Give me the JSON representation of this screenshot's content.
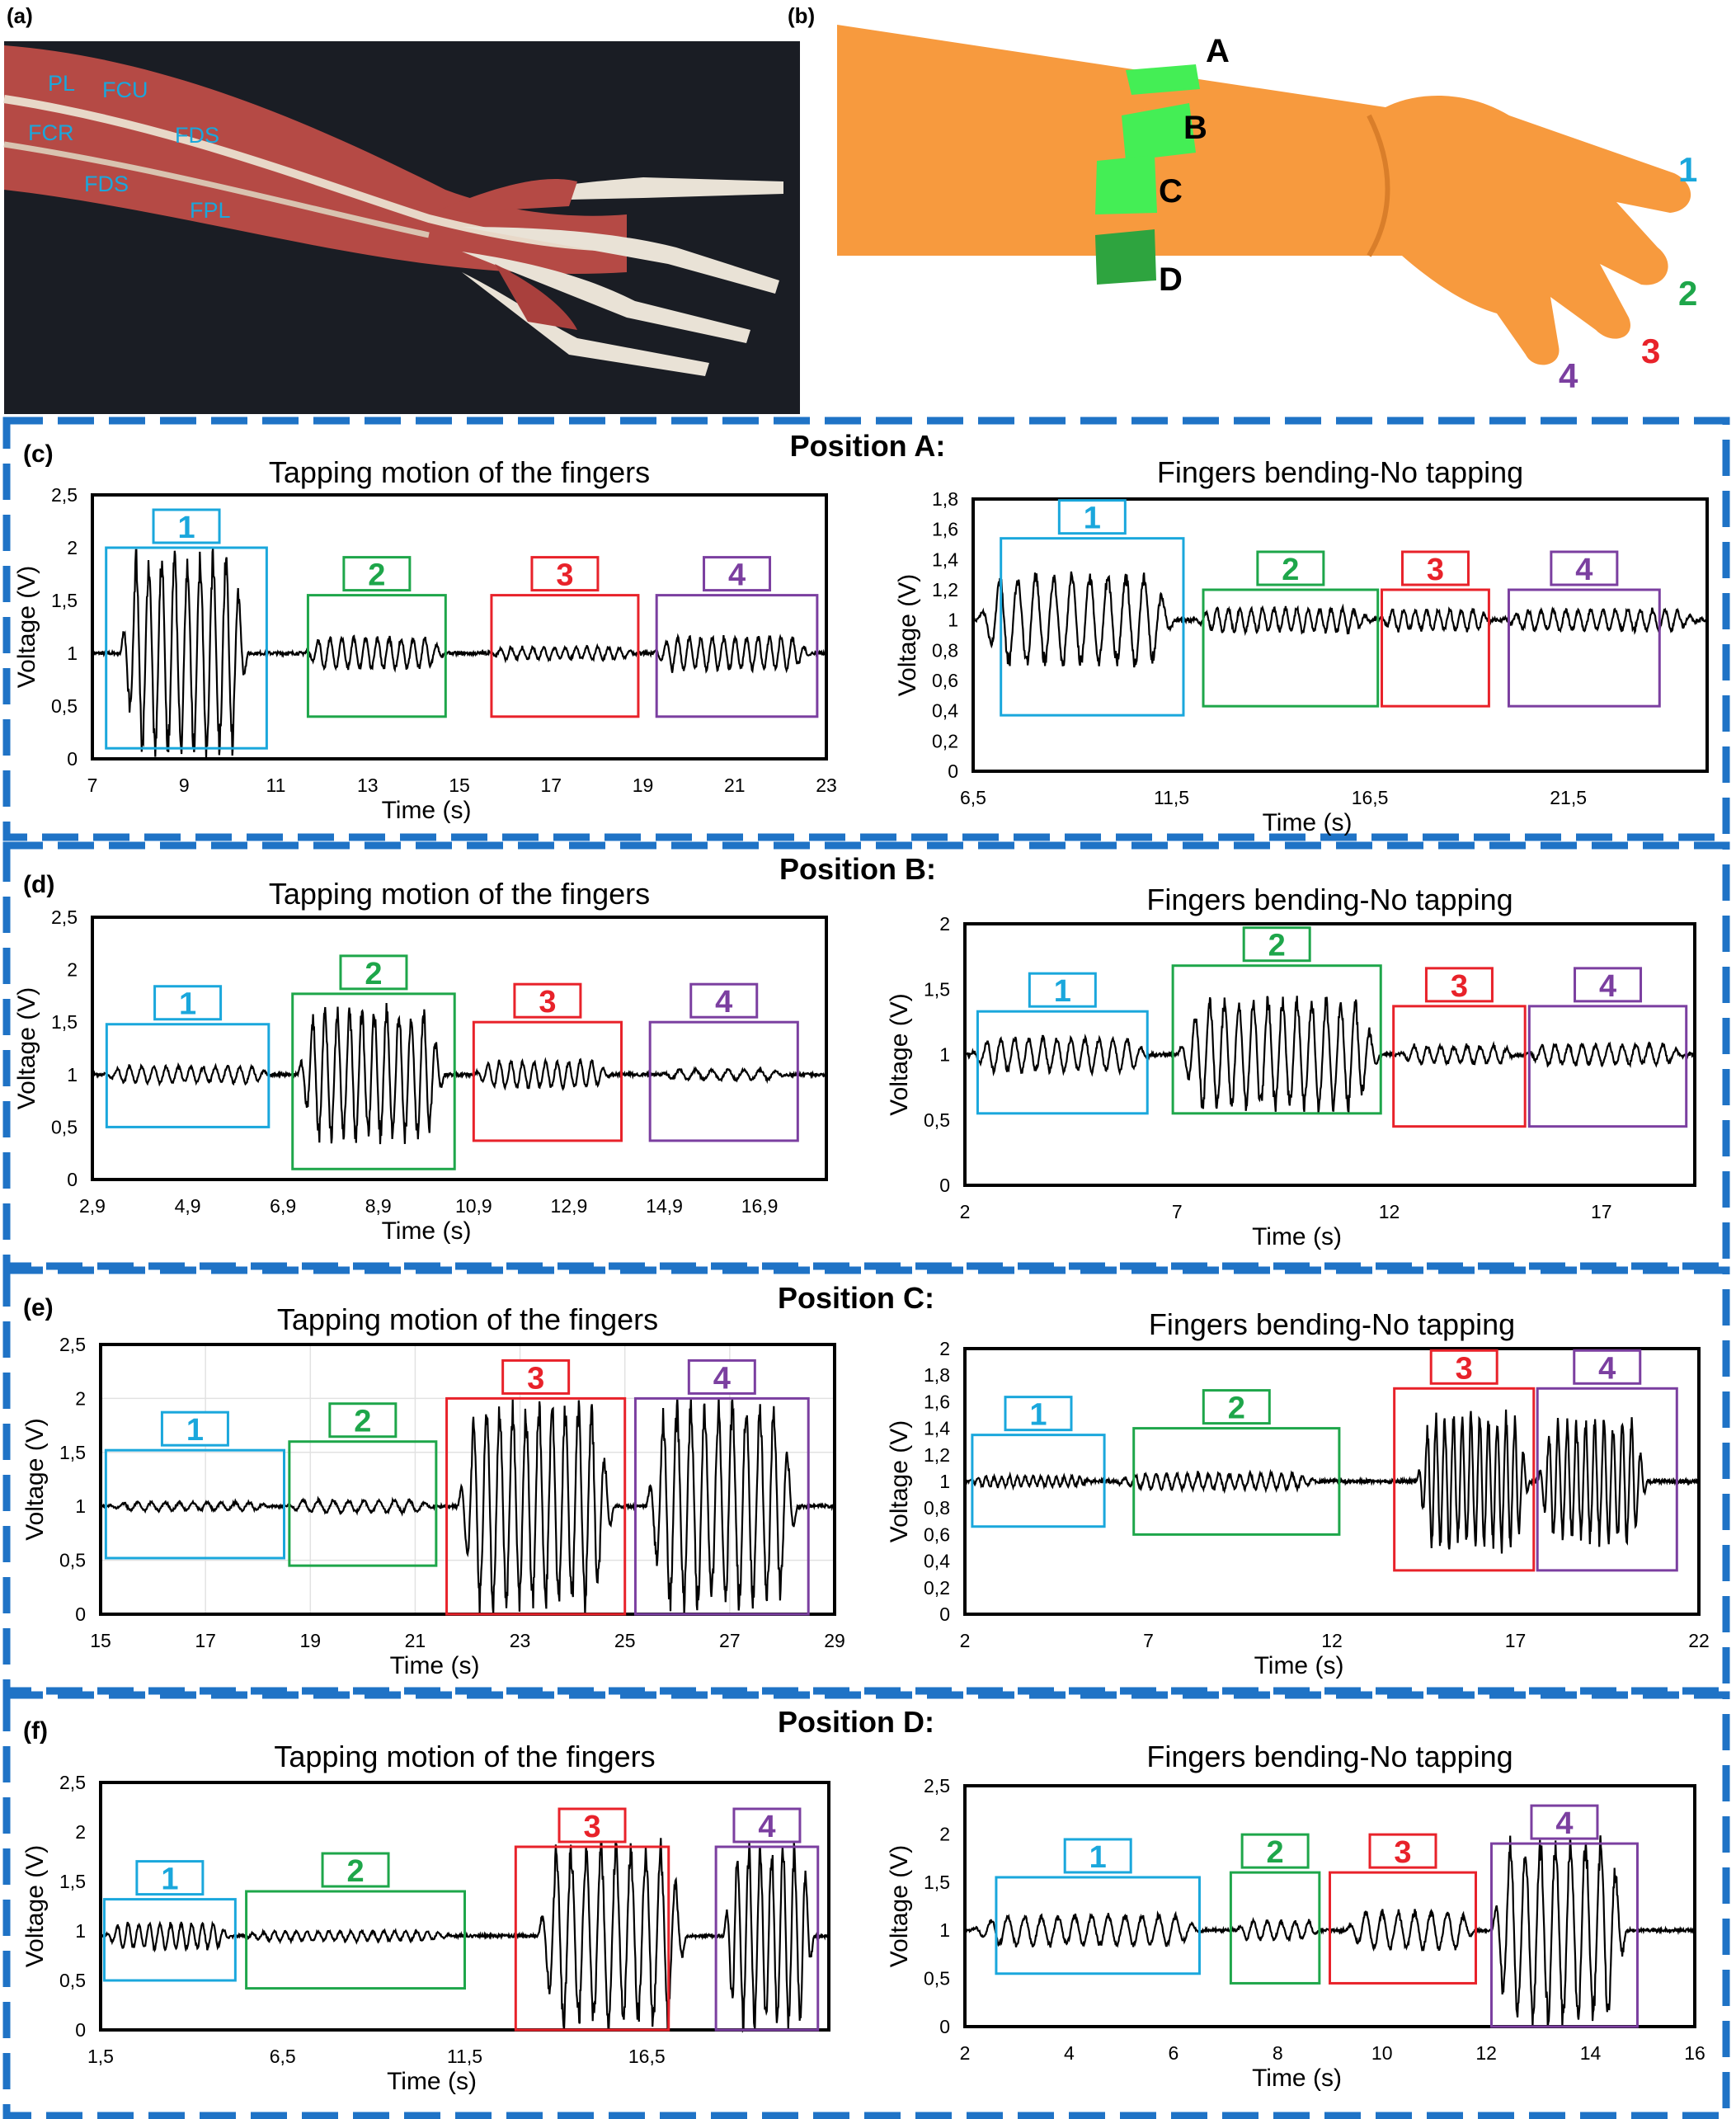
{
  "panels": {
    "a": {
      "label": "(a)",
      "muscles": [
        {
          "text": "PL"
        },
        {
          "text": "FCU"
        },
        {
          "text": "FCR"
        },
        {
          "text": "FDS"
        },
        {
          "text": "FDS"
        },
        {
          "text": "FPL"
        }
      ]
    },
    "b": {
      "label": "(b)",
      "sensors": [
        "A",
        "B",
        "C",
        "D"
      ],
      "fingers": [
        "1",
        "2",
        "3",
        "4"
      ]
    }
  },
  "colors": {
    "f1": "#1aa7dc",
    "f2": "#1ea64a",
    "f3": "#e8222a",
    "f4": "#7b3fa0",
    "frame": "#1f73c6",
    "sensor": "#44ee55",
    "skin": "#f79a3e"
  },
  "sections": [
    {
      "label": "(c)",
      "position_title": "Position A:"
    },
    {
      "label": "(d)",
      "position_title": "Position B:"
    },
    {
      "label": "(e)",
      "position_title": "Position C:"
    },
    {
      "label": "(f)",
      "position_title": "Position D:"
    }
  ],
  "chart_data": [
    {
      "id": "c-tap",
      "type": "line",
      "title": "Tapping motion of the fingers",
      "xlabel": "Time (s)",
      "ylabel": "Voltage (V)",
      "xlim": [
        7,
        23
      ],
      "ylim": [
        0,
        2.5
      ],
      "xticks": [
        "7",
        "9",
        "11",
        "13",
        "15",
        "17",
        "19",
        "21",
        "23"
      ],
      "yticks": [
        "0",
        "0,5",
        "1",
        "1,5",
        "2",
        "2,5"
      ],
      "baseline": 1.0,
      "series": [
        {
          "values": [
            {
              "finger": "1",
              "t_start": 7.6,
              "t_end": 10.4,
              "cycles": 10,
              "amp": 0.92
            },
            {
              "finger": "2",
              "t_start": 11.6,
              "t_end": 14.7,
              "cycles": 12,
              "amp": 0.15
            },
            {
              "finger": "3",
              "t_start": 15.6,
              "t_end": 18.9,
              "cycles": 14,
              "amp": 0.06
            },
            {
              "finger": "4",
              "t_start": 19.2,
              "t_end": 22.7,
              "cycles": 14,
              "amp": 0.16
            }
          ]
        }
      ],
      "boxes": [
        {
          "label": "1",
          "x0": 7.3,
          "x1": 10.8,
          "y0": 0.1,
          "y1": 2.0
        },
        {
          "label": "2",
          "x0": 11.7,
          "x1": 14.7,
          "y0": 0.4,
          "y1": 1.55
        },
        {
          "label": "3",
          "x0": 15.7,
          "x1": 18.9,
          "y0": 0.4,
          "y1": 1.55
        },
        {
          "label": "4",
          "x0": 19.3,
          "x1": 22.8,
          "y0": 0.4,
          "y1": 1.55
        }
      ]
    },
    {
      "id": "c-bend",
      "type": "line",
      "title": "Fingers bending-No tapping",
      "xlabel": "Time (s)",
      "ylabel": "Voltage (V)",
      "xlim": [
        6.5,
        25
      ],
      "ylim": [
        0,
        1.8
      ],
      "xticks": [
        "6,5",
        "11,5",
        "16,5",
        "21,5"
      ],
      "yticks": [
        "0",
        "0,2",
        "0,4",
        "0,6",
        "0,8",
        "1",
        "1,2",
        "1,4",
        "1,6",
        "1,8"
      ],
      "baseline": 1.0,
      "series": [
        {
          "values": [
            {
              "finger": "1",
              "t_start": 6.6,
              "t_end": 11.6,
              "cycles": 11,
              "amp": 0.3
            },
            {
              "finger": "2",
              "t_start": 12.0,
              "t_end": 16.6,
              "cycles": 16,
              "amp": 0.08
            },
            {
              "finger": "3",
              "t_start": 16.7,
              "t_end": 19.6,
              "cycles": 10,
              "amp": 0.07
            },
            {
              "finger": "4",
              "t_start": 19.8,
              "t_end": 24.8,
              "cycles": 16,
              "amp": 0.07
            }
          ]
        }
      ],
      "boxes": [
        {
          "label": "1",
          "x0": 7.2,
          "x1": 11.8,
          "y0": 0.37,
          "y1": 1.54
        },
        {
          "label": "2",
          "x0": 12.3,
          "x1": 16.7,
          "y0": 0.43,
          "y1": 1.2
        },
        {
          "label": "3",
          "x0": 16.8,
          "x1": 19.5,
          "y0": 0.43,
          "y1": 1.2
        },
        {
          "label": "4",
          "x0": 20.0,
          "x1": 23.8,
          "y0": 0.43,
          "y1": 1.2
        }
      ]
    },
    {
      "id": "d-tap",
      "type": "line",
      "title": "Tapping motion of the fingers",
      "xlabel": "Time (s)",
      "ylabel": "Voltage (V)",
      "xlim": [
        2.9,
        18.3
      ],
      "ylim": [
        0,
        2.5
      ],
      "xticks": [
        "2,9",
        "4,9",
        "6,9",
        "8,9",
        "10,9",
        "12,9",
        "14,9",
        "16,9"
      ],
      "yticks": [
        "0",
        "0,5",
        "1",
        "1,5",
        "2",
        "2,5"
      ],
      "baseline": 1.0,
      "series": [
        {
          "values": [
            {
              "finger": "1",
              "t_start": 3.1,
              "t_end": 6.7,
              "cycles": 14,
              "amp": 0.08
            },
            {
              "finger": "2",
              "t_start": 7.2,
              "t_end": 10.3,
              "cycles": 12,
              "amp": 0.62
            },
            {
              "finger": "3",
              "t_start": 10.9,
              "t_end": 13.8,
              "cycles": 12,
              "amp": 0.13
            },
            {
              "finger": "4",
              "t_start": 14.8,
              "t_end": 17.5,
              "cycles": 8,
              "amp": 0.05
            }
          ]
        }
      ],
      "boxes": [
        {
          "label": "1",
          "x0": 3.2,
          "x1": 6.6,
          "y0": 0.5,
          "y1": 1.48
        },
        {
          "label": "2",
          "x0": 7.1,
          "x1": 10.5,
          "y0": 0.1,
          "y1": 1.77
        },
        {
          "label": "3",
          "x0": 10.9,
          "x1": 14.0,
          "y0": 0.37,
          "y1": 1.5
        },
        {
          "label": "4",
          "x0": 14.6,
          "x1": 17.7,
          "y0": 0.37,
          "y1": 1.5
        }
      ]
    },
    {
      "id": "d-bend",
      "type": "line",
      "title": "Fingers bending-No tapping",
      "xlabel": "Time (s)",
      "ylabel": "Voltage (V)",
      "xlim": [
        2,
        19.2
      ],
      "ylim": [
        0,
        2
      ],
      "xticks": [
        "2",
        "7",
        "12",
        "17"
      ],
      "yticks": [
        "0",
        "0,5",
        "1",
        "1,5",
        "2"
      ],
      "baseline": 1.0,
      "series": [
        {
          "values": [
            {
              "finger": "1",
              "t_start": 2.1,
              "t_end": 6.4,
              "cycles": 13,
              "amp": 0.13
            },
            {
              "finger": "2",
              "t_start": 7.0,
              "t_end": 11.8,
              "cycles": 14,
              "amp": 0.42
            },
            {
              "finger": "3",
              "t_start": 12.2,
              "t_end": 15.0,
              "cycles": 9,
              "amp": 0.07
            },
            {
              "finger": "4",
              "t_start": 15.2,
              "t_end": 19.0,
              "cycles": 12,
              "amp": 0.08
            }
          ]
        }
      ],
      "boxes": [
        {
          "label": "1",
          "x0": 2.3,
          "x1": 6.3,
          "y0": 0.55,
          "y1": 1.33
        },
        {
          "label": "2",
          "x0": 6.9,
          "x1": 11.8,
          "y0": 0.55,
          "y1": 1.68
        },
        {
          "label": "3",
          "x0": 12.1,
          "x1": 15.2,
          "y0": 0.45,
          "y1": 1.37
        },
        {
          "label": "4",
          "x0": 15.3,
          "x1": 19.0,
          "y0": 0.45,
          "y1": 1.37
        }
      ]
    },
    {
      "id": "e-tap",
      "type": "line",
      "title": "Tapping motion of the fingers",
      "xlabel": "Time (s)",
      "ylabel": "Voltage (V)",
      "xlim": [
        15,
        29
      ],
      "ylim": [
        0,
        2.5
      ],
      "xticks": [
        "15",
        "17",
        "19",
        "21",
        "23",
        "25",
        "27",
        "29"
      ],
      "yticks": [
        "0",
        "0,5",
        "1",
        "1,5",
        "2",
        "2,5"
      ],
      "baseline": 1.0,
      "grid": true,
      "series": [
        {
          "values": [
            {
              "finger": "1",
              "t_start": 15.1,
              "t_end": 18.3,
              "cycles": 12,
              "amp": 0.04
            },
            {
              "finger": "2",
              "t_start": 18.5,
              "t_end": 21.4,
              "cycles": 10,
              "amp": 0.06
            },
            {
              "finger": "3",
              "t_start": 21.8,
              "t_end": 24.8,
              "cycles": 12,
              "amp": 0.93
            },
            {
              "finger": "4",
              "t_start": 25.4,
              "t_end": 28.3,
              "cycles": 11,
              "amp": 0.93
            }
          ]
        }
      ],
      "boxes": [
        {
          "label": "1",
          "x0": 15.1,
          "x1": 18.5,
          "y0": 0.52,
          "y1": 1.52
        },
        {
          "label": "2",
          "x0": 18.6,
          "x1": 21.4,
          "y0": 0.45,
          "y1": 1.6
        },
        {
          "label": "3",
          "x0": 21.6,
          "x1": 25.0,
          "y0": 0.0,
          "y1": 2.0
        },
        {
          "label": "4",
          "x0": 25.2,
          "x1": 28.5,
          "y0": 0.0,
          "y1": 2.0
        }
      ]
    },
    {
      "id": "e-bend",
      "type": "line",
      "title": "Fingers bending-No tapping",
      "xlabel": "Time (s)",
      "ylabel": "Voltage (V)",
      "xlim": [
        2,
        22
      ],
      "ylim": [
        0,
        2
      ],
      "xticks": [
        "2",
        "7",
        "12",
        "17",
        "22"
      ],
      "yticks": [
        "0",
        "0,2",
        "0,4",
        "0,6",
        "0,8",
        "1",
        "1,2",
        "1,4",
        "1,6",
        "1,8",
        "2"
      ],
      "baseline": 1.0,
      "series": [
        {
          "values": [
            {
              "finger": "1",
              "t_start": 2.1,
              "t_end": 5.5,
              "cycles": 16,
              "amp": 0.04
            },
            {
              "finger": "2",
              "t_start": 6.0,
              "t_end": 11.7,
              "cycles": 20,
              "amp": 0.06
            },
            {
              "finger": "3",
              "t_start": 14.3,
              "t_end": 17.4,
              "cycles": 13,
              "amp": 0.5
            },
            {
              "finger": "4",
              "t_start": 17.6,
              "t_end": 20.6,
              "cycles": 12,
              "amp": 0.45
            }
          ]
        }
      ],
      "boxes": [
        {
          "label": "1",
          "x0": 2.2,
          "x1": 5.8,
          "y0": 0.66,
          "y1": 1.35
        },
        {
          "label": "2",
          "x0": 6.6,
          "x1": 12.2,
          "y0": 0.6,
          "y1": 1.4
        },
        {
          "label": "3",
          "x0": 13.7,
          "x1": 17.5,
          "y0": 0.33,
          "y1": 1.7
        },
        {
          "label": "4",
          "x0": 17.6,
          "x1": 21.4,
          "y0": 0.33,
          "y1": 1.7
        }
      ]
    },
    {
      "id": "f-tap",
      "type": "line",
      "title": "Tapping motion of the fingers",
      "xlabel": "Time (s)",
      "ylabel": "Voltage (V)",
      "xlim": [
        1.5,
        21.5
      ],
      "ylim": [
        0,
        2.5
      ],
      "xticks": [
        "1,5",
        "6,5",
        "11,5",
        "16,5"
      ],
      "yticks": [
        "0",
        "0,5",
        "1",
        "1,5",
        "2",
        "2,5"
      ],
      "baseline": 0.95,
      "series": [
        {
          "values": [
            {
              "finger": "1",
              "t_start": 1.6,
              "t_end": 5.1,
              "cycles": 12,
              "amp": 0.13
            },
            {
              "finger": "2",
              "t_start": 5.3,
              "t_end": 11.3,
              "cycles": 20,
              "amp": 0.05
            },
            {
              "finger": "3",
              "t_start": 13.5,
              "t_end": 17.6,
              "cycles": 10,
              "amp": 0.9
            },
            {
              "finger": "4",
              "t_start": 18.6,
              "t_end": 21.1,
              "cycles": 8,
              "amp": 0.9
            }
          ]
        }
      ],
      "boxes": [
        {
          "label": "1",
          "x0": 1.6,
          "x1": 5.2,
          "y0": 0.5,
          "y1": 1.32
        },
        {
          "label": "2",
          "x0": 5.5,
          "x1": 11.5,
          "y0": 0.42,
          "y1": 1.4
        },
        {
          "label": "3",
          "x0": 12.9,
          "x1": 17.1,
          "y0": 0.0,
          "y1": 1.85
        },
        {
          "label": "4",
          "x0": 18.4,
          "x1": 21.2,
          "y0": 0.0,
          "y1": 1.85
        }
      ]
    },
    {
      "id": "f-bend",
      "type": "line",
      "title": "Fingers bending-No tapping",
      "xlabel": "Time (s)",
      "ylabel": "Voltage (V)",
      "xlim": [
        2,
        16
      ],
      "ylim": [
        0,
        2.5
      ],
      "xticks": [
        "2",
        "4",
        "6",
        "8",
        "10",
        "12",
        "14",
        "16"
      ],
      "yticks": [
        "0",
        "0,5",
        "1",
        "1,5",
        "2",
        "2,5"
      ],
      "baseline": 1.0,
      "series": [
        {
          "values": [
            {
              "finger": "1",
              "t_start": 2.1,
              "t_end": 6.6,
              "cycles": 14,
              "amp": 0.16
            },
            {
              "finger": "2",
              "t_start": 7.2,
              "t_end": 8.8,
              "cycles": 6,
              "amp": 0.1
            },
            {
              "finger": "3",
              "t_start": 9.3,
              "t_end": 11.8,
              "cycles": 8,
              "amp": 0.2
            },
            {
              "finger": "4",
              "t_start": 12.1,
              "t_end": 14.7,
              "cycles": 9,
              "amp": 0.95
            }
          ]
        }
      ],
      "boxes": [
        {
          "label": "1",
          "x0": 2.6,
          "x1": 6.5,
          "y0": 0.55,
          "y1": 1.55
        },
        {
          "label": "2",
          "x0": 7.1,
          "x1": 8.8,
          "y0": 0.45,
          "y1": 1.6
        },
        {
          "label": "3",
          "x0": 9.0,
          "x1": 11.8,
          "y0": 0.45,
          "y1": 1.6
        },
        {
          "label": "4",
          "x0": 12.1,
          "x1": 14.9,
          "y0": 0.0,
          "y1": 1.9
        }
      ]
    }
  ]
}
